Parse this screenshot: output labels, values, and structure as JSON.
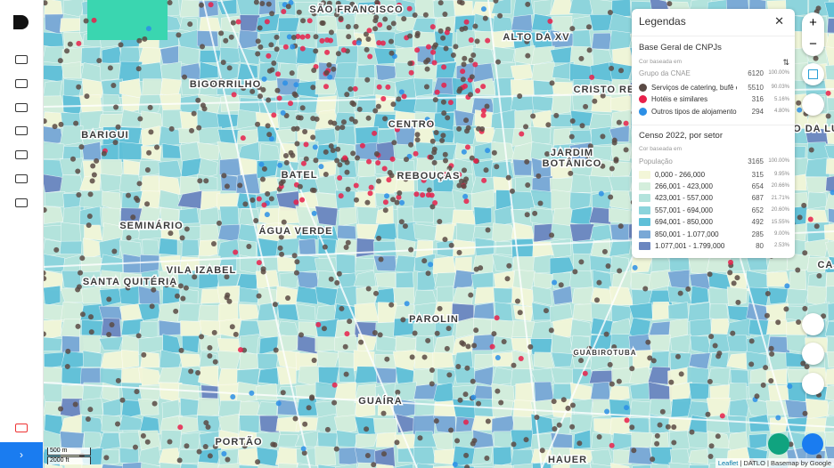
{
  "map": {
    "labels": [
      "SÃO FRANCISCO",
      "ALTO DA XV",
      "BIGORRILHO",
      "CRISTO RE",
      "CENTRO",
      "BARIGUI",
      "JARDIM",
      "BOTÂNICO",
      "BATEL",
      "REBOUÇAS",
      "SEMINÁRIO",
      "ÁGUA VERDE",
      "VILA IZABEL",
      "SANTA QUITÉRIA",
      "PAROLIN",
      "GUABIROTUBA",
      "GUAÍRA",
      "PORTÃO",
      "HAUER",
      "O DA LU",
      "CAJ"
    ],
    "scale": {
      "metric": "500 m",
      "imperial": "2000 ft"
    },
    "attribution": {
      "link": "Leaflet",
      "rest": "| DATLO | Basemap by Google"
    }
  },
  "legend": {
    "title": "Legendas",
    "sections": [
      {
        "title": "Base Geral de CNPJs",
        "basis_caption": "Cor baseada em",
        "basis": "Grupo da CNAE",
        "total": 6120,
        "total_pct": "100.00%",
        "items": [
          {
            "name": "Serviços de catering, bufê e o...",
            "count": 5510,
            "pct": "90.03%",
            "color": "#5a4a44",
            "shape": "dot"
          },
          {
            "name": "Hotéis e similares",
            "count": 316,
            "pct": "5.16%",
            "color": "#e8204a",
            "shape": "dot"
          },
          {
            "name": "Outros tipos de alojamento nã...",
            "count": 294,
            "pct": "4.80%",
            "color": "#2b8fe6",
            "shape": "dot"
          }
        ]
      },
      {
        "title": "Censo 2022, por setor",
        "basis_caption": "Cor baseada em",
        "basis": "População",
        "total": 3165,
        "total_pct": "100.00%",
        "items": [
          {
            "name": "0,000 - 266,000",
            "count": 315,
            "pct": "9.95%",
            "color": "#f3f6d8",
            "shape": "box"
          },
          {
            "name": "266,001 - 423,000",
            "count": 654,
            "pct": "20.66%",
            "color": "#d4eedc",
            "shape": "box"
          },
          {
            "name": "423,001 - 557,000",
            "count": 687,
            "pct": "21.71%",
            "color": "#b3e3dc",
            "shape": "box"
          },
          {
            "name": "557,001 - 694,000",
            "count": 652,
            "pct": "20.60%",
            "color": "#8bd4dc",
            "shape": "box"
          },
          {
            "name": "694,001 - 850,000",
            "count": 492,
            "pct": "15.55%",
            "color": "#5fc0d8",
            "shape": "box"
          },
          {
            "name": "850,001 - 1.077,000",
            "count": 285,
            "pct": "9.00%",
            "color": "#79a8d6",
            "shape": "box"
          },
          {
            "name": "1.077,001 - 1.799,000",
            "count": 80,
            "pct": "2.53%",
            "color": "#6b86c0",
            "shape": "box"
          }
        ]
      }
    ]
  }
}
